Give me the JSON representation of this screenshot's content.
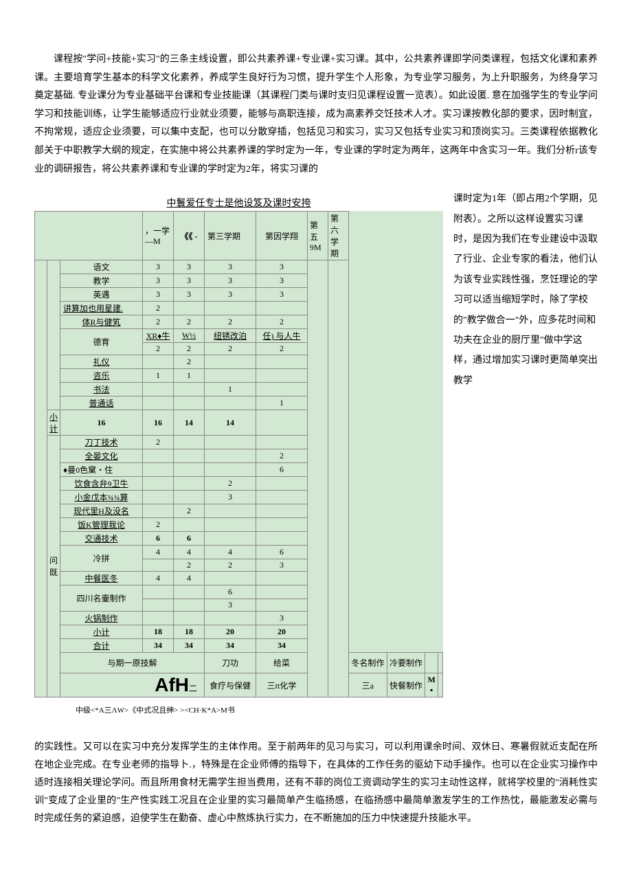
{
  "intro": "课程按\"学问+技能+实习\"的三条主线设置，即公共素养课+专业课+实习课。其中，公共素养课即学问类课程，包括文化课和素养课。主要培育学生基本的科学文化素养，养成学生良好行为习惯，提升学生个人形象，为专业学习服务，为上升职服务，为终身学习奠定基础. 专业课分为专业基础平台课和专业技能课（其课程门类与课时支归见课程设置一览表）。如此设匿. 意在加强学生的专业学问学习和技能训练，让学生能够适应行业就业须要，能够与高职连接，成为高素养交饪技术人才。实习课按教化部的要求，因时制宜，不拘常规，适应企业须要，可以集中支配，也可以分散穿插，包括见习和实习，实习又包括专业实习和顶岗实习。三类课程依据教化部关于中职教学大纲的规定，在实施中将公共素养课的学时定为一年，专业课的学时定为两年，这两年中含实习一年。我们分析r该专业的调研报告，将公共素养课和专业课的学时定为2年，将实习课的",
  "table_title": "中鬟爱任专士是他设笈及课时安挎",
  "headers": {
    "sem1": "，一学\n—M",
    "sem2": "《《 -",
    "sem3": "第三学期",
    "sem4": "第因学翔",
    "sem5": "第五\n9M",
    "sem6": "第六学期"
  },
  "rows": [
    {
      "label": "语文",
      "v": [
        "3",
        "3",
        "3",
        "3",
        "",
        ""
      ]
    },
    {
      "label": "教学",
      "v": [
        "3",
        "3",
        "3",
        "3",
        "",
        ""
      ]
    },
    {
      "label": "英遇",
      "v": [
        "3",
        "3",
        "3",
        "3",
        "",
        ""
      ]
    },
    {
      "label": "讲算加也用星建.",
      "v": [
        "2",
        "",
        "",
        "",
        "",
        ""
      ],
      "und": true,
      "left": true
    },
    {
      "label": "体R与健笂",
      "v": [
        "2",
        "2",
        "2",
        "2",
        "",
        ""
      ],
      "und": true
    },
    {
      "label": "德育",
      "v": [
        "XR♦牛",
        "W½",
        "纽锈改泊",
        "任) 与人牛",
        "",
        ""
      ],
      "split": [
        "2",
        "2",
        "2",
        "2",
        "",
        ""
      ],
      "und2": true
    },
    {
      "label": "礼仪",
      "v": [
        "",
        "2",
        "",
        "",
        "",
        ""
      ],
      "und": true
    },
    {
      "label": "咨乐",
      "v": [
        "1",
        "1",
        "",
        "",
        "",
        ""
      ],
      "und": true
    },
    {
      "label": "书法",
      "v": [
        "",
        "",
        "1",
        "",
        "",
        ""
      ],
      "und": true
    },
    {
      "label": "普通话",
      "v": [
        "",
        "",
        "",
        "1",
        "",
        ""
      ],
      "und": true
    },
    {
      "label": "小计",
      "v": [
        "16",
        "16",
        "14",
        "14",
        "",
        ""
      ],
      "bold": true,
      "und": true
    },
    {
      "label": "刀丁技术",
      "v": [
        "2",
        "",
        "",
        "",
        "",
        ""
      ],
      "und": true
    },
    {
      "label": "全晏文化",
      "v": [
        "",
        "",
        "",
        "2",
        "",
        ""
      ],
      "und": true
    },
    {
      "label": "♦曼0色窠・住",
      "v": [
        "",
        "",
        "",
        "6",
        "",
        ""
      ],
      "left": true
    },
    {
      "label": "饮食含弁9卫牛",
      "v": [
        "",
        "",
        "2",
        "",
        "",
        ""
      ],
      "und": true
    },
    {
      "label": "小金戊本¾¾算",
      "v": [
        "",
        "",
        "3",
        "",
        "",
        ""
      ],
      "und": true
    },
    {
      "label": "现代里H及没名",
      "v": [
        "",
        "2",
        "",
        "",
        "",
        ""
      ],
      "und": true
    },
    {
      "label": "饭K管理我论",
      "v": [
        "2",
        "",
        "",
        "",
        "",
        ""
      ],
      "und": true
    },
    {
      "label": "交通技术",
      "v": [
        "6",
        "6",
        "",
        "",
        "",
        ""
      ],
      "bold": true,
      "und": true
    },
    {
      "label": "冷拼",
      "v": [
        "4",
        "4",
        "4",
        "6",
        "",
        ""
      ],
      "split": [
        "",
        "2",
        "2",
        "3",
        "",
        ""
      ]
    },
    {
      "label": "中餐医冬",
      "v": [
        "4",
        "4",
        "",
        "",
        "",
        ""
      ],
      "und": true
    },
    {
      "label": "四川名壷制作",
      "v": [
        "",
        "",
        "6",
        "",
        "",
        ""
      ],
      "split": [
        "",
        "",
        "3",
        "",
        "",
        ""
      ]
    },
    {
      "label": "火锅制作",
      "v": [
        "",
        "",
        "",
        "3",
        "",
        ""
      ],
      "und": true
    },
    {
      "label": "小计",
      "v": [
        "18",
        "18",
        "20",
        "20",
        "",
        ""
      ],
      "bold": true,
      "und": true
    },
    {
      "label": "合计",
      "v": [
        "34",
        "34",
        "34",
        "34",
        "",
        ""
      ],
      "bold": true,
      "und": true
    }
  ],
  "sideLabel": "问既",
  "bottom1": {
    "label": "与期一原技解",
    "v": [
      "刀功",
      "给菜",
      "冬名制作",
      "冷要制作",
      "",
      ""
    ]
  },
  "bottom2": {
    "label": "AfH",
    "suffix": "二",
    "v": [
      "食疗与保健",
      "三tt化学",
      "三a",
      "快餐制作",
      "M\n▪",
      ""
    ]
  },
  "footnote": "中级<*A三ΛW>《中式况且绅> ><CH·K*A>M书",
  "right_text": "课时定为1年（即占用2个学期，见附表）。之所以这样设置实习课时，是因为我们在专业建设中汲取了行业、企业专家的看法，他们认为该专业实践性强，烹饪理论的学习可以适当缩短学时，除了学校的\"教学做合一\"外，应多花时间和功夫在企业的厨厅里\"做中学这样，通过增加实习课时更简单突出教学",
  "final": "的实践性。又可以在实习中充分发挥学生的主体作用。至于前两年的见习与实习，可以利用课余时间、双休日、寒暑假就近支配在所在地企业完成。在专业老师的指导卜.，特殊是在企业师傅的指导下，在具体的工作任务的驱幼下动手操作。也可以在企业实习操作中适时连接相关理论学问。而且所用食材无需学生担当费用，还有不菲的岗位工资调动学生的实习主动性这样，就将学校里的\"消耗性实训\"变成了企业里的\"生产性实践工况且在企业里的实习最简单产生临扬感，在临扬感中最简单激发学生的工作热忱，最能激发必需与时完成任务的紧迫感，迫使学生在勤奋、虚心中熬炼执行实力，在不断施加的压力中快速提升技能水平。"
}
